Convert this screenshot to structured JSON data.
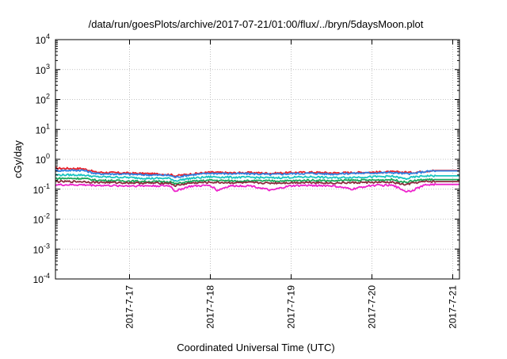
{
  "chart_data": {
    "type": "line",
    "title": "/data/run/goesPlots/archive/2017-07-21/01:00/flux/../bryn/5daysMoon.plot",
    "xlabel": "Coordinated Universal Time (UTC)",
    "ylabel": "cGy/day",
    "yscale": "log",
    "ylim": [
      0.0001,
      10000
    ],
    "y_ticks": [
      {
        "exp": "-4",
        "value": 0.0001
      },
      {
        "exp": "-3",
        "value": 0.001
      },
      {
        "exp": "-2",
        "value": 0.01
      },
      {
        "exp": "-1",
        "value": 0.1
      },
      {
        "exp": "0",
        "value": 1
      },
      {
        "exp": "1",
        "value": 10
      },
      {
        "exp": "2",
        "value": 100
      },
      {
        "exp": "3",
        "value": 1000
      },
      {
        "exp": "4",
        "value": 10000
      }
    ],
    "y_tick_base": "10",
    "xlim": [
      "2017-07-16 02:00",
      "2017-07-21 02:00"
    ],
    "x_ticks": [
      "2017-7-17",
      "2017-7-18",
      "2017-7-19",
      "2017-7-20",
      "2017-7-21"
    ],
    "x_tick_dates": [
      "2017-07-17 00:00",
      "2017-07-18 00:00",
      "2017-07-19 00:00",
      "2017-07-20 00:00",
      "2017-07-21 00:00"
    ],
    "grid": true,
    "legend": "none",
    "series": [
      {
        "color": "#e8212a",
        "values": [
          [
            "2017-07-16 02:00",
            0.5
          ],
          [
            "2017-07-16 10:00",
            0.49
          ],
          [
            "2017-07-16 14:00",
            0.37
          ],
          [
            "2017-07-16 22:00",
            0.35
          ],
          [
            "2017-07-17 06:00",
            0.33
          ],
          [
            "2017-07-17 12:00",
            0.31
          ],
          [
            "2017-07-17 13:30",
            0.28
          ],
          [
            "2017-07-17 18:00",
            0.32
          ],
          [
            "2017-07-18 00:00",
            0.37
          ],
          [
            "2017-07-18 06:00",
            0.35
          ],
          [
            "2017-07-18 12:00",
            0.36
          ],
          [
            "2017-07-18 18:00",
            0.34
          ],
          [
            "2017-07-19 00:00",
            0.36
          ],
          [
            "2017-07-19 06:00",
            0.37
          ],
          [
            "2017-07-19 12:00",
            0.35
          ],
          [
            "2017-07-19 18:00",
            0.36
          ],
          [
            "2017-07-20 00:00",
            0.37
          ],
          [
            "2017-07-20 06:00",
            0.38
          ],
          [
            "2017-07-20 10:00",
            0.37
          ],
          [
            "2017-07-20 12:00",
            0.36
          ],
          [
            "2017-07-20 16:00",
            0.4
          ],
          [
            "2017-07-20 18:00",
            0.42
          ],
          [
            "2017-07-21 02:00",
            0.42
          ]
        ]
      },
      {
        "color": "#2f7fe0",
        "values": [
          [
            "2017-07-16 02:00",
            0.42
          ],
          [
            "2017-07-16 10:00",
            0.43
          ],
          [
            "2017-07-16 14:00",
            0.33
          ],
          [
            "2017-07-16 22:00",
            0.32
          ],
          [
            "2017-07-17 06:00",
            0.3
          ],
          [
            "2017-07-17 12:00",
            0.29
          ],
          [
            "2017-07-17 13:30",
            0.25
          ],
          [
            "2017-07-17 18:00",
            0.3
          ],
          [
            "2017-07-18 00:00",
            0.34
          ],
          [
            "2017-07-18 06:00",
            0.33
          ],
          [
            "2017-07-18 12:00",
            0.33
          ],
          [
            "2017-07-18 18:00",
            0.31
          ],
          [
            "2017-07-19 00:00",
            0.33
          ],
          [
            "2017-07-19 06:00",
            0.34
          ],
          [
            "2017-07-19 12:00",
            0.32
          ],
          [
            "2017-07-19 18:00",
            0.34
          ],
          [
            "2017-07-20 00:00",
            0.35
          ],
          [
            "2017-07-20 06:00",
            0.36
          ],
          [
            "2017-07-20 10:00",
            0.33
          ],
          [
            "2017-07-20 12:00",
            0.33
          ],
          [
            "2017-07-20 16:00",
            0.39
          ],
          [
            "2017-07-20 18:00",
            0.41
          ],
          [
            "2017-07-21 02:00",
            0.41
          ]
        ]
      },
      {
        "color": "#19c4c0",
        "values": [
          [
            "2017-07-16 02:00",
            0.3
          ],
          [
            "2017-07-16 10:00",
            0.3
          ],
          [
            "2017-07-16 14:00",
            0.26
          ],
          [
            "2017-07-16 22:00",
            0.25
          ],
          [
            "2017-07-17 06:00",
            0.23
          ],
          [
            "2017-07-17 12:00",
            0.23
          ],
          [
            "2017-07-17 13:30",
            0.19
          ],
          [
            "2017-07-17 18:00",
            0.23
          ],
          [
            "2017-07-18 00:00",
            0.26
          ],
          [
            "2017-07-18 06:00",
            0.25
          ],
          [
            "2017-07-18 12:00",
            0.25
          ],
          [
            "2017-07-18 18:00",
            0.24
          ],
          [
            "2017-07-19 00:00",
            0.25
          ],
          [
            "2017-07-19 06:00",
            0.26
          ],
          [
            "2017-07-19 12:00",
            0.24
          ],
          [
            "2017-07-19 18:00",
            0.25
          ],
          [
            "2017-07-20 00:00",
            0.26
          ],
          [
            "2017-07-20 06:00",
            0.27
          ],
          [
            "2017-07-20 10:00",
            0.22
          ],
          [
            "2017-07-20 12:00",
            0.25
          ],
          [
            "2017-07-20 16:00",
            0.28
          ],
          [
            "2017-07-20 18:00",
            0.28
          ],
          [
            "2017-07-21 02:00",
            0.28
          ]
        ]
      },
      {
        "color": "#1aa65a",
        "values": [
          [
            "2017-07-16 02:00",
            0.23
          ],
          [
            "2017-07-16 10:00",
            0.23
          ],
          [
            "2017-07-16 14:00",
            0.2
          ],
          [
            "2017-07-16 22:00",
            0.19
          ],
          [
            "2017-07-17 06:00",
            0.18
          ],
          [
            "2017-07-17 12:00",
            0.18
          ],
          [
            "2017-07-17 13:30",
            0.15
          ],
          [
            "2017-07-17 18:00",
            0.18
          ],
          [
            "2017-07-18 00:00",
            0.2
          ],
          [
            "2017-07-18 06:00",
            0.19
          ],
          [
            "2017-07-18 12:00",
            0.19
          ],
          [
            "2017-07-18 18:00",
            0.19
          ],
          [
            "2017-07-19 00:00",
            0.19
          ],
          [
            "2017-07-19 06:00",
            0.2
          ],
          [
            "2017-07-19 12:00",
            0.19
          ],
          [
            "2017-07-19 18:00",
            0.2
          ],
          [
            "2017-07-20 00:00",
            0.2
          ],
          [
            "2017-07-20 06:00",
            0.21
          ],
          [
            "2017-07-20 10:00",
            0.17
          ],
          [
            "2017-07-20 12:00",
            0.19
          ],
          [
            "2017-07-20 16:00",
            0.21
          ],
          [
            "2017-07-20 18:00",
            0.21
          ],
          [
            "2017-07-21 02:00",
            0.21
          ]
        ]
      },
      {
        "color": "#8a2a3c",
        "values": [
          [
            "2017-07-16 02:00",
            0.18
          ],
          [
            "2017-07-16 10:00",
            0.18
          ],
          [
            "2017-07-16 14:00",
            0.17
          ],
          [
            "2017-07-16 22:00",
            0.165
          ],
          [
            "2017-07-17 06:00",
            0.16
          ],
          [
            "2017-07-17 12:00",
            0.16
          ],
          [
            "2017-07-17 13:30",
            0.13
          ],
          [
            "2017-07-17 18:00",
            0.16
          ],
          [
            "2017-07-18 00:00",
            0.17
          ],
          [
            "2017-07-18 06:00",
            0.165
          ],
          [
            "2017-07-18 12:00",
            0.165
          ],
          [
            "2017-07-18 18:00",
            0.16
          ],
          [
            "2017-07-19 00:00",
            0.165
          ],
          [
            "2017-07-19 06:00",
            0.17
          ],
          [
            "2017-07-19 12:00",
            0.16
          ],
          [
            "2017-07-19 18:00",
            0.165
          ],
          [
            "2017-07-20 00:00",
            0.17
          ],
          [
            "2017-07-20 06:00",
            0.17
          ],
          [
            "2017-07-20 10:00",
            0.14
          ],
          [
            "2017-07-20 12:00",
            0.16
          ],
          [
            "2017-07-20 16:00",
            0.18
          ],
          [
            "2017-07-20 18:00",
            0.18
          ],
          [
            "2017-07-21 02:00",
            0.18
          ]
        ]
      },
      {
        "color": "#ee22cc",
        "values": [
          [
            "2017-07-16 02:00",
            0.14
          ],
          [
            "2017-07-16 10:00",
            0.14
          ],
          [
            "2017-07-16 14:00",
            0.135
          ],
          [
            "2017-07-16 22:00",
            0.13
          ],
          [
            "2017-07-17 06:00",
            0.13
          ],
          [
            "2017-07-17 12:00",
            0.13
          ],
          [
            "2017-07-17 13:30",
            0.085
          ],
          [
            "2017-07-17 18:00",
            0.125
          ],
          [
            "2017-07-18 00:00",
            0.135
          ],
          [
            "2017-07-18 02:00",
            0.09
          ],
          [
            "2017-07-18 06:00",
            0.13
          ],
          [
            "2017-07-18 12:00",
            0.13
          ],
          [
            "2017-07-18 18:00",
            0.09
          ],
          [
            "2017-07-19 00:00",
            0.13
          ],
          [
            "2017-07-19 06:00",
            0.135
          ],
          [
            "2017-07-19 12:00",
            0.13
          ],
          [
            "2017-07-19 18:00",
            0.1
          ],
          [
            "2017-07-20 00:00",
            0.135
          ],
          [
            "2017-07-20 06:00",
            0.135
          ],
          [
            "2017-07-20 10:00",
            0.085
          ],
          [
            "2017-07-20 12:00",
            0.09
          ],
          [
            "2017-07-20 16:00",
            0.14
          ],
          [
            "2017-07-20 18:00",
            0.145
          ],
          [
            "2017-07-21 02:00",
            0.145
          ]
        ]
      }
    ]
  }
}
